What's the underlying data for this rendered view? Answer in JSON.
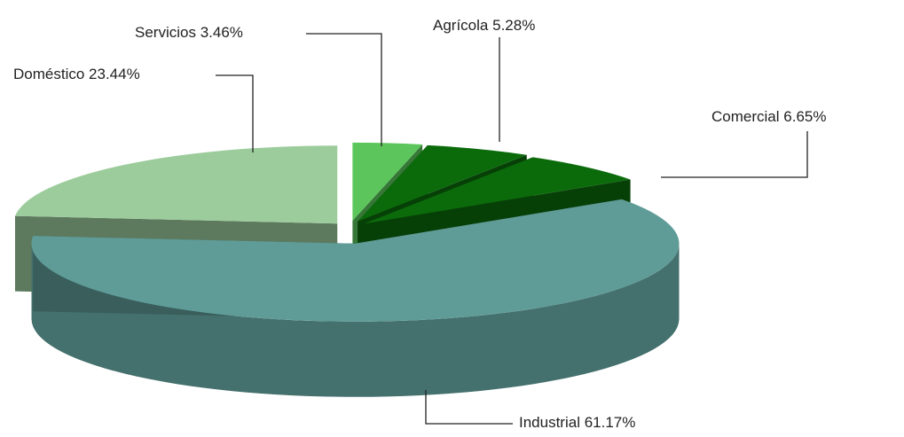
{
  "chart_data": {
    "type": "pie3d",
    "categories": [
      "Servicios",
      "Agrícola",
      "Comercial",
      "Industrial",
      "Doméstico"
    ],
    "values": [
      3.46,
      5.28,
      6.65,
      61.17,
      23.44
    ],
    "value_labels": [
      "3.46%",
      "5.28%",
      "6.65%",
      "61.17%",
      "23.44%"
    ],
    "colors": [
      "#5cc65c",
      "#0b6b0b",
      "#0b6b0b",
      "#5f9c98",
      "#9ccc9c"
    ]
  }
}
